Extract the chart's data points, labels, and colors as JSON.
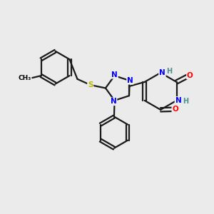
{
  "bg_color": "#ebebeb",
  "atom_colors": {
    "N": "#0000ff",
    "O": "#ff0000",
    "S": "#b8b800",
    "C": "#000000",
    "H_label": "#4a9090"
  },
  "bond_color": "#1a1a1a",
  "bond_width": 1.6,
  "figsize": [
    3.0,
    3.0
  ],
  "dpi": 100,
  "xlim": [
    0,
    10
  ],
  "ylim": [
    0,
    10
  ]
}
